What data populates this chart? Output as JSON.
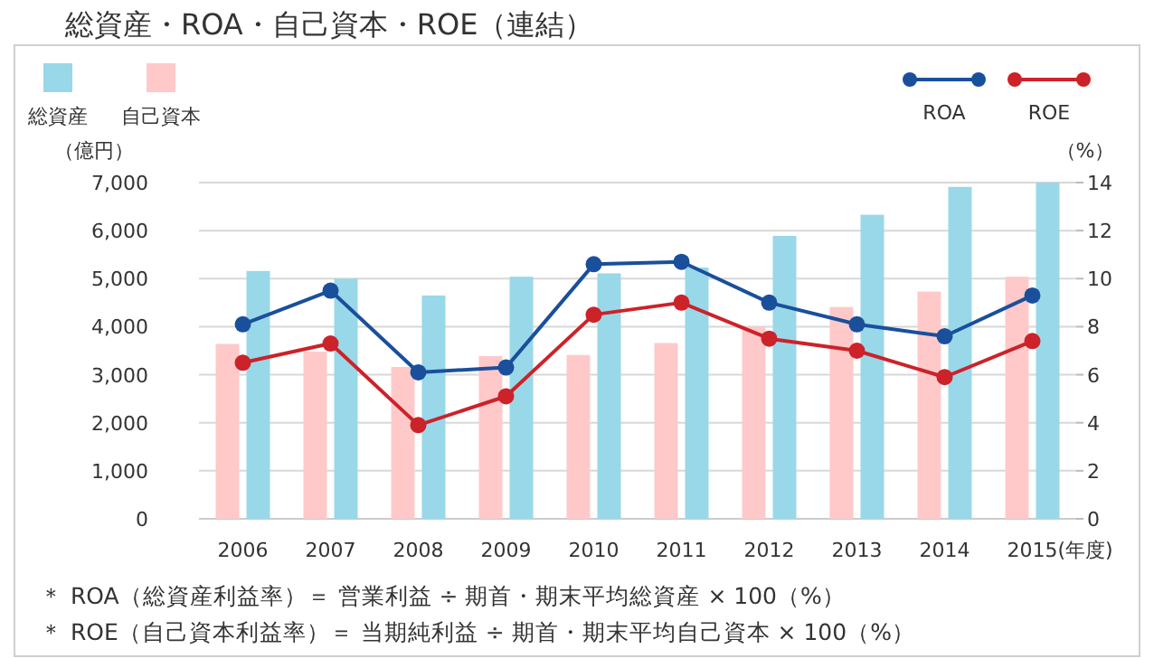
{
  "chart_data": {
    "type": "bar",
    "title": "総資産・ROA・自己資本・ROE（連結）",
    "ylabel": "（億円）",
    "y2label": "（%）",
    "xlabel": "(年度)",
    "categories": [
      "2006",
      "2007",
      "2008",
      "2009",
      "2010",
      "2011",
      "2012",
      "2013",
      "2014",
      "2015"
    ],
    "series": [
      {
        "name": "総資産",
        "color": "#99d8e8",
        "values": [
          5160,
          5000,
          4650,
          5040,
          5110,
          5230,
          5890,
          6330,
          6910,
          7000
        ]
      },
      {
        "name": "自己資本",
        "color": "#ffc9c9",
        "values": [
          3640,
          3480,
          3160,
          3390,
          3410,
          3660,
          4000,
          4410,
          4730,
          5040
        ]
      },
      {
        "name": "ROA",
        "type": "line",
        "axis": "y2",
        "color": "#1a4f9c",
        "values": [
          8.1,
          9.5,
          6.1,
          6.3,
          10.6,
          10.7,
          9.0,
          8.1,
          7.6,
          9.3
        ]
      },
      {
        "name": "ROE",
        "type": "line",
        "axis": "y2",
        "color": "#cc2229",
        "values": [
          6.5,
          7.3,
          3.9,
          5.1,
          8.5,
          9.0,
          7.5,
          7.0,
          5.9,
          7.4
        ]
      }
    ],
    "ylim": [
      0,
      7000
    ],
    "yticks": [
      0,
      {
        "value": 1000,
        "label": "1,000"
      },
      {
        "value": 2000,
        "label": "2,000"
      },
      {
        "value": 3000,
        "label": "3,000"
      },
      {
        "value": 4000,
        "label": "4,000"
      },
      {
        "value": 5000,
        "label": "5,000"
      },
      {
        "value": 6000,
        "label": "6,000"
      },
      {
        "value": 7000,
        "label": "7,000"
      }
    ],
    "y2lim": [
      0,
      14
    ],
    "y2ticks": [
      0,
      2,
      4,
      6,
      8,
      10,
      12,
      14
    ],
    "grid": "y",
    "legend": "top",
    "marker": "circle",
    "annotations": [
      "＊ ROA（総資産利益率）＝ 営業利益 ÷ 期首・期末平均総資産 × 100（%）",
      "＊ ROE（自己資本利益率）＝ 当期純利益 ÷ 期首・期末平均自己資本 × 100（%）"
    ]
  }
}
